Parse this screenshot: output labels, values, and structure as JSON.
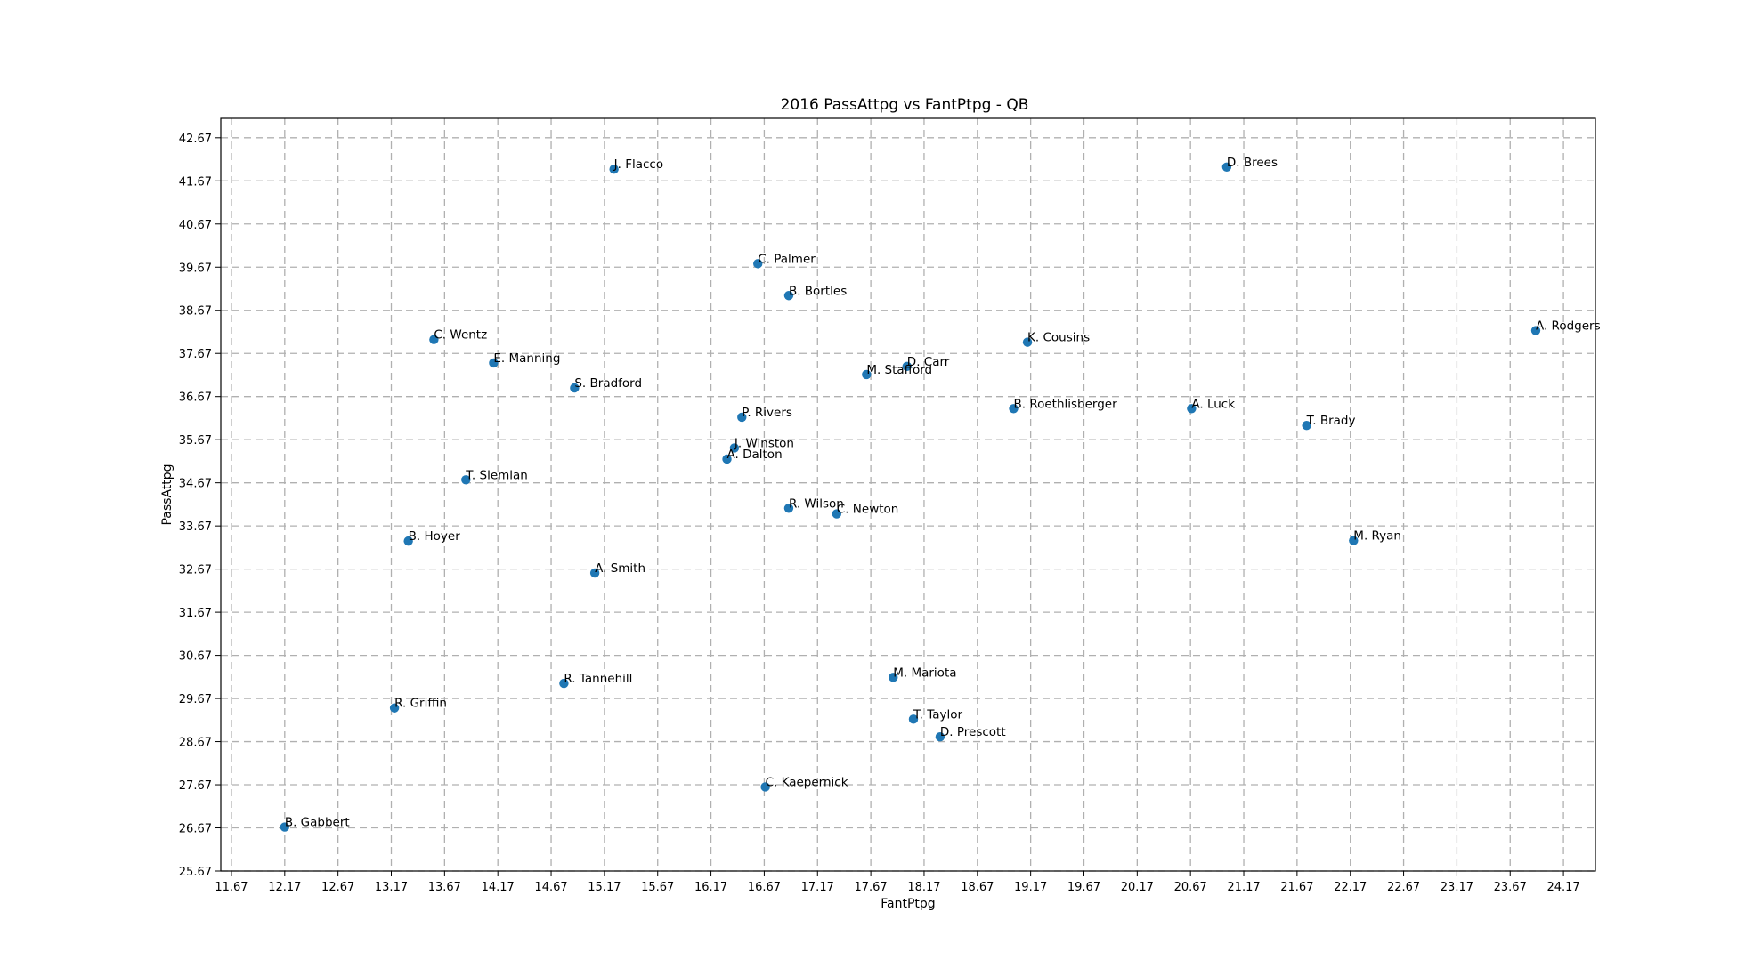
{
  "chart_data": {
    "type": "scatter",
    "title": "2016 PassAttpg vs FantPtpg - QB",
    "xlabel": "FantPtpg",
    "ylabel": "PassAttpg",
    "xlim": [
      11.57,
      24.47
    ],
    "ylim": [
      25.67,
      43.12
    ],
    "xticks": [
      "11.67",
      "12.17",
      "12.67",
      "13.17",
      "13.67",
      "14.17",
      "14.67",
      "15.17",
      "15.67",
      "16.17",
      "16.67",
      "17.17",
      "17.67",
      "18.17",
      "18.67",
      "19.17",
      "19.67",
      "20.17",
      "20.67",
      "21.17",
      "21.67",
      "22.17",
      "22.67",
      "23.17",
      "23.67",
      "24.17"
    ],
    "yticks": [
      "25.67",
      "26.67",
      "27.67",
      "28.67",
      "29.67",
      "30.67",
      "31.67",
      "32.67",
      "33.67",
      "34.67",
      "35.67",
      "36.67",
      "37.67",
      "38.67",
      "39.67",
      "40.67",
      "41.67",
      "42.67"
    ],
    "grid": true,
    "marker_color": "#1f77b4",
    "points": [
      {
        "label": "J. Flacco",
        "x": 15.26,
        "y": 41.94
      },
      {
        "label": "D. Brees",
        "x": 21.01,
        "y": 41.99
      },
      {
        "label": "C. Palmer",
        "x": 16.61,
        "y": 39.75
      },
      {
        "label": "B. Bortles",
        "x": 16.9,
        "y": 39.01
      },
      {
        "label": "C. Wentz",
        "x": 13.57,
        "y": 37.99
      },
      {
        "label": "A. Rodgers",
        "x": 23.91,
        "y": 38.2
      },
      {
        "label": "K. Cousins",
        "x": 19.14,
        "y": 37.93
      },
      {
        "label": "E. Manning",
        "x": 14.13,
        "y": 37.45
      },
      {
        "label": "D. Carr",
        "x": 18.01,
        "y": 37.37
      },
      {
        "label": "M. Stafford",
        "x": 17.63,
        "y": 37.18
      },
      {
        "label": "S. Bradford",
        "x": 14.89,
        "y": 36.87
      },
      {
        "label": "B. Roethlisberger",
        "x": 19.01,
        "y": 36.39
      },
      {
        "label": "A. Luck",
        "x": 20.68,
        "y": 36.39
      },
      {
        "label": "P. Rivers",
        "x": 16.46,
        "y": 36.19
      },
      {
        "label": "T. Brady",
        "x": 21.76,
        "y": 36.0
      },
      {
        "label": "J. Winston",
        "x": 16.39,
        "y": 35.48
      },
      {
        "label": "A. Dalton",
        "x": 16.32,
        "y": 35.22
      },
      {
        "label": "T. Siemian",
        "x": 13.87,
        "y": 34.74
      },
      {
        "label": "R. Wilson",
        "x": 16.9,
        "y": 34.08
      },
      {
        "label": "C. Newton",
        "x": 17.35,
        "y": 33.95
      },
      {
        "label": "B. Hoyer",
        "x": 13.33,
        "y": 33.32
      },
      {
        "label": "M. Ryan",
        "x": 22.2,
        "y": 33.33
      },
      {
        "label": "A. Smith",
        "x": 15.08,
        "y": 32.58
      },
      {
        "label": "R. Tannehill",
        "x": 14.79,
        "y": 30.02
      },
      {
        "label": "M. Mariota",
        "x": 17.88,
        "y": 30.16
      },
      {
        "label": "R. Griffin",
        "x": 13.2,
        "y": 29.45
      },
      {
        "label": "T. Taylor",
        "x": 18.07,
        "y": 29.19
      },
      {
        "label": "D. Prescott",
        "x": 18.32,
        "y": 28.78
      },
      {
        "label": "C. Kaepernick",
        "x": 16.68,
        "y": 27.62
      },
      {
        "label": "B. Gabbert",
        "x": 12.17,
        "y": 26.69
      }
    ]
  }
}
